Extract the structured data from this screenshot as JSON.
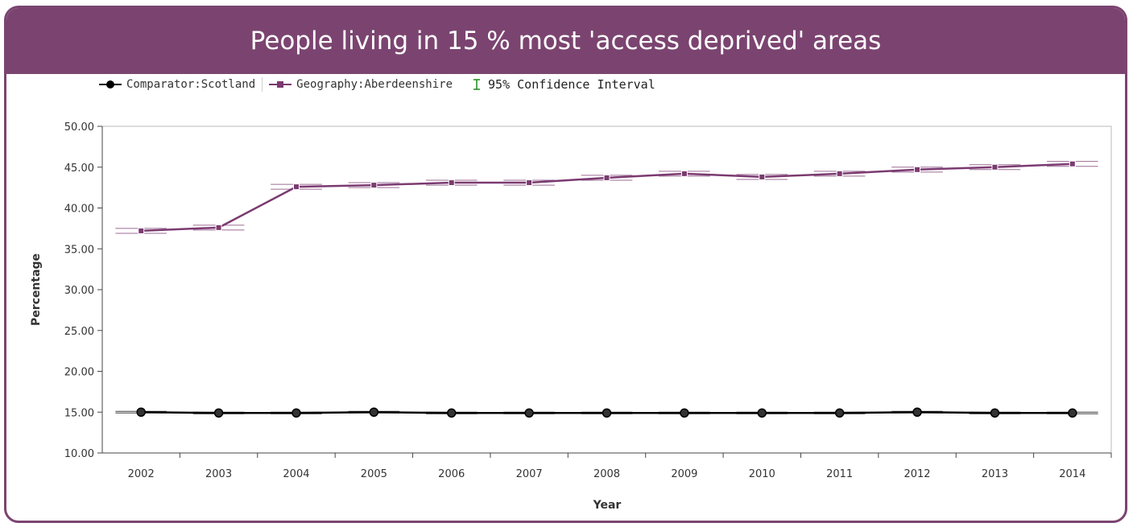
{
  "header": {
    "title": "People living in 15 % most 'access deprived' areas"
  },
  "legend": {
    "items": [
      {
        "label": "Comparator:Scotland",
        "color": "#000000",
        "marker": "circle"
      },
      {
        "label": "Geography:Aberdeenshire",
        "color": "#7b3a70",
        "marker": "square"
      },
      {
        "label": "95% Confidence Interval",
        "color": "#1a8a1a",
        "marker": "errorbar"
      }
    ]
  },
  "chart_data": {
    "type": "line",
    "xlabel": "Year",
    "ylabel": "Percentage",
    "ylim": [
      10,
      50
    ],
    "ytick_step": 5,
    "ytick_format": "0.00",
    "grid": false,
    "legend_position": "top-left",
    "x": [
      "2002",
      "2003",
      "2004",
      "2005",
      "2006",
      "2007",
      "2008",
      "2009",
      "2010",
      "2011",
      "2012",
      "2013",
      "2014"
    ],
    "series": [
      {
        "name": "Comparator:Scotland",
        "color": "#000000",
        "marker": "circle",
        "values": [
          15.0,
          14.9,
          14.9,
          15.0,
          14.9,
          14.9,
          14.9,
          14.9,
          14.9,
          14.9,
          15.0,
          14.9,
          14.9
        ],
        "ci_lower": [
          14.9,
          14.8,
          14.8,
          14.9,
          14.8,
          14.8,
          14.8,
          14.8,
          14.8,
          14.8,
          14.9,
          14.8,
          14.8
        ],
        "ci_upper": [
          15.1,
          15.0,
          15.0,
          15.1,
          15.0,
          15.0,
          15.0,
          15.0,
          15.0,
          15.0,
          15.1,
          15.0,
          15.0
        ]
      },
      {
        "name": "Geography:Aberdeenshire",
        "color": "#7b3a70",
        "marker": "square",
        "values": [
          37.2,
          37.6,
          42.6,
          42.8,
          43.1,
          43.1,
          43.7,
          44.2,
          43.8,
          44.2,
          44.7,
          45.0,
          45.4
        ],
        "ci_lower": [
          36.9,
          37.3,
          42.3,
          42.5,
          42.8,
          42.8,
          43.4,
          43.9,
          43.5,
          43.9,
          44.4,
          44.7,
          45.1
        ],
        "ci_upper": [
          37.5,
          37.9,
          42.9,
          43.1,
          43.4,
          43.4,
          44.0,
          44.5,
          44.1,
          44.5,
          45.0,
          45.3,
          45.7
        ]
      }
    ]
  }
}
